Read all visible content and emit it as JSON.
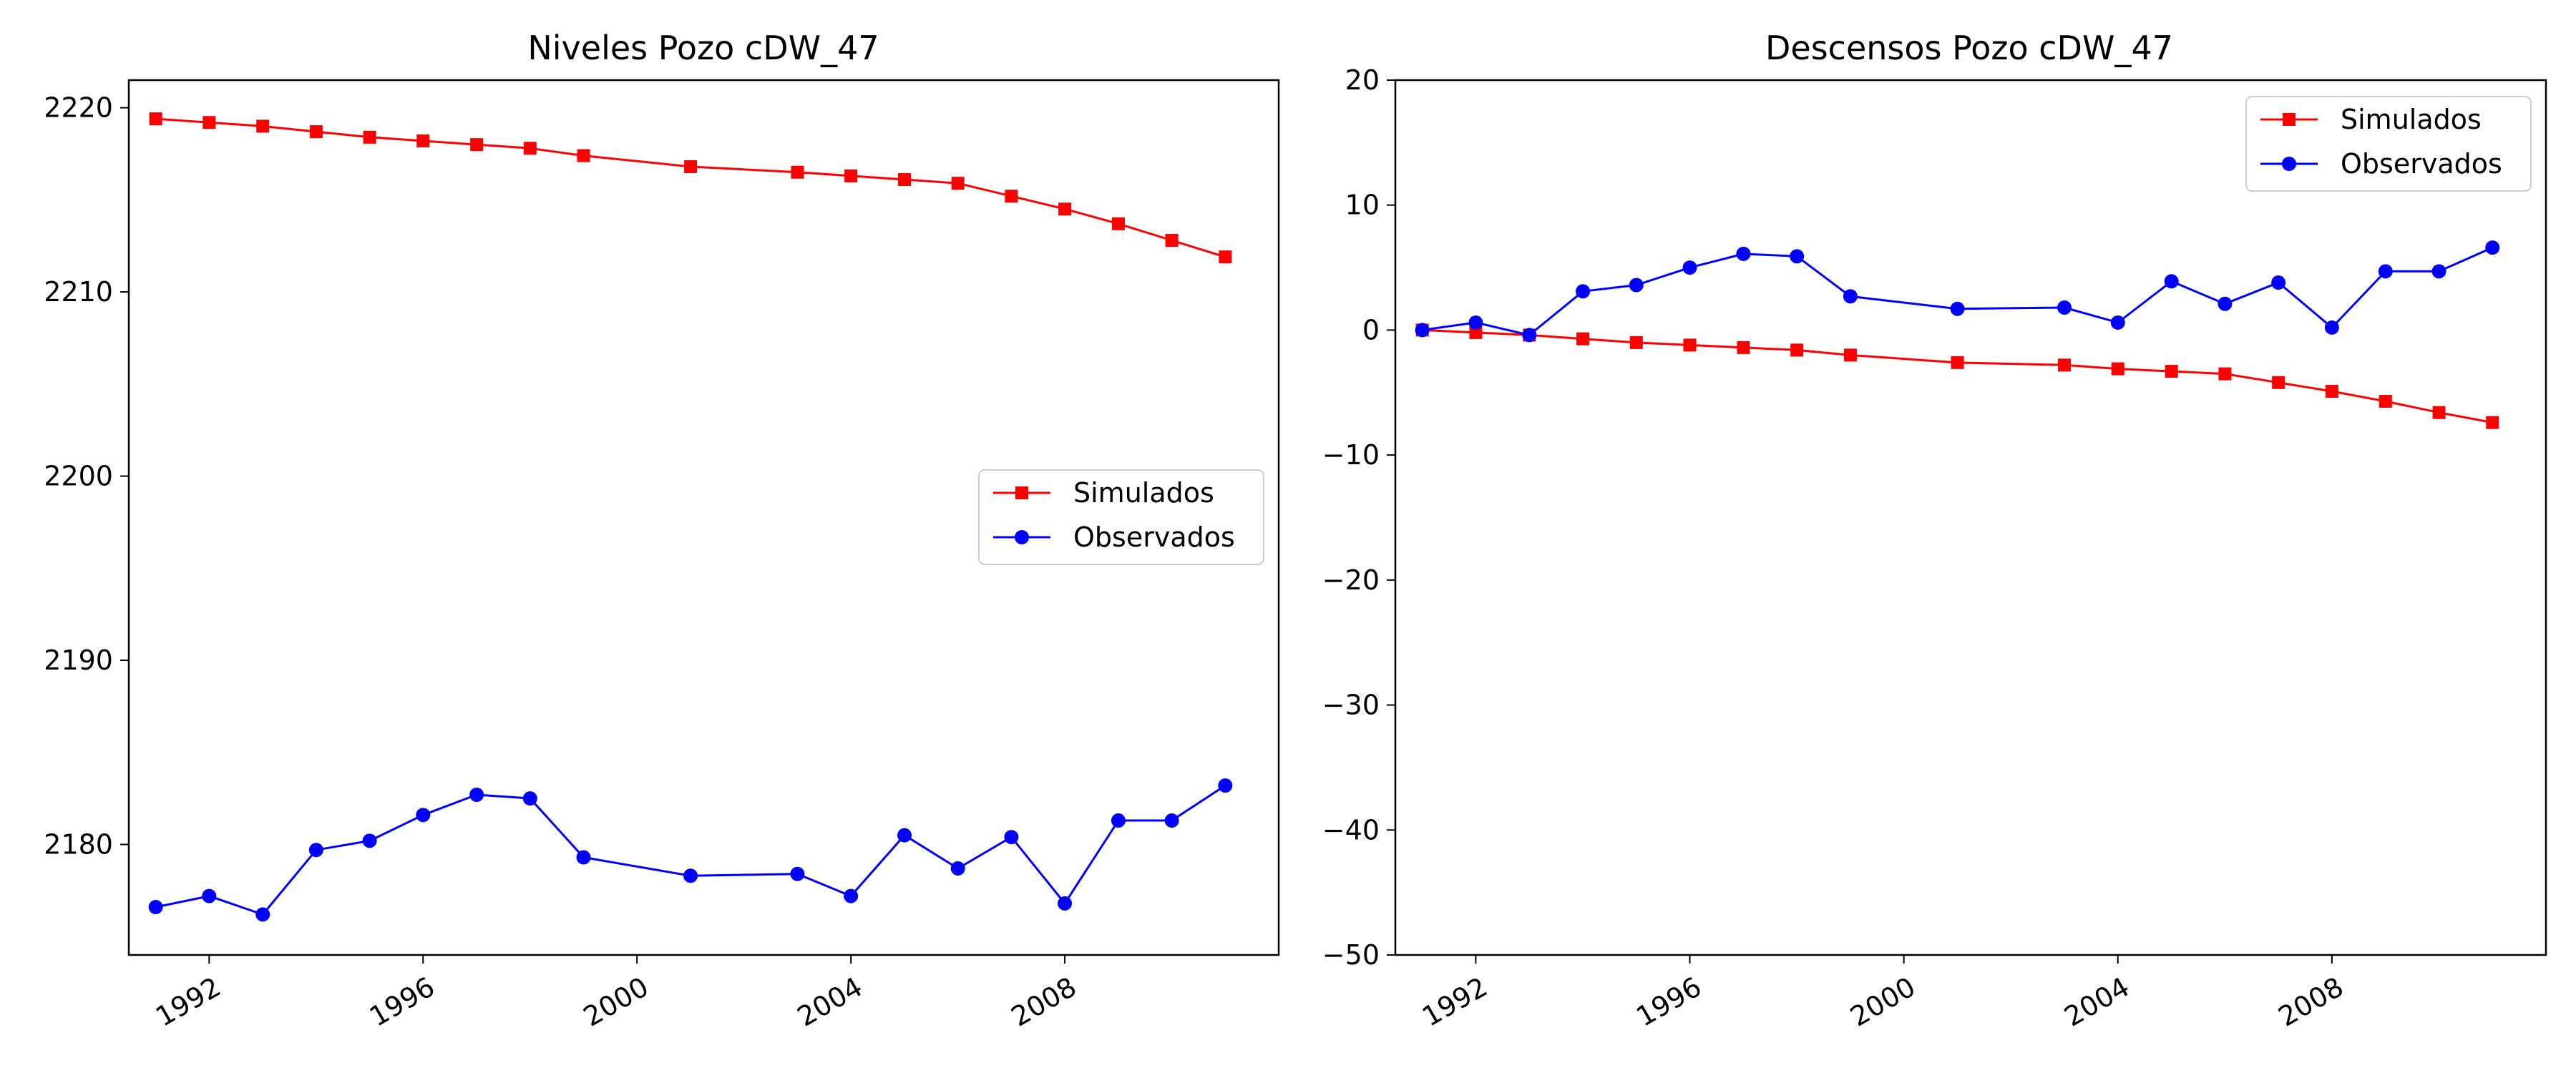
{
  "chart_data": [
    {
      "type": "line",
      "title": "Niveles Pozo cDW_47",
      "xlabel": "",
      "ylabel": "",
      "x_ticks": [
        "1992",
        "1996",
        "2000",
        "2004",
        "2008"
      ],
      "y_ticks": [
        "2180",
        "2190",
        "2200",
        "2210",
        "2220"
      ],
      "xlim": [
        "1990-07-01",
        "2012-01-01"
      ],
      "ylim": [
        2174,
        2221.5
      ],
      "grid": false,
      "legend": "center-right",
      "series": [
        {
          "name": "Simulados",
          "color": "#ff0000",
          "marker": "square",
          "x": [
            "1991-01-01",
            "1992-01-01",
            "1993-01-01",
            "1994-01-01",
            "1995-01-01",
            "1996-01-01",
            "1997-01-01",
            "1998-01-01",
            "1999-01-01",
            "2001-01-01",
            "2003-01-01",
            "2004-01-01",
            "2005-01-01",
            "2006-01-01",
            "2007-01-01",
            "2008-01-01",
            "2009-01-01",
            "2010-01-01",
            "2011-01-01"
          ],
          "y": [
            2219.4,
            2219.2,
            2219.0,
            2218.7,
            2218.4,
            2218.2,
            2218.0,
            2217.8,
            2217.4,
            2216.8,
            2216.5,
            2216.3,
            2216.1,
            2215.9,
            2215.2,
            2214.5,
            2213.7,
            2212.8,
            2211.9
          ]
        },
        {
          "name": "Observados",
          "color": "#0000ff",
          "marker": "circle",
          "x": [
            "1991-01-01",
            "1992-01-01",
            "1993-01-01",
            "1994-01-01",
            "1995-01-01",
            "1996-01-01",
            "1997-01-01",
            "1998-01-01",
            "1999-01-01",
            "2001-01-01",
            "2003-01-01",
            "2004-01-01",
            "2005-01-01",
            "2006-01-01",
            "2007-01-01",
            "2008-01-01",
            "2009-01-01",
            "2010-01-01",
            "2011-01-01"
          ],
          "y": [
            2176.6,
            2177.2,
            2176.2,
            2179.7,
            2180.2,
            2181.6,
            2182.7,
            2182.5,
            2179.3,
            2178.3,
            2178.4,
            2177.2,
            2180.5,
            2178.7,
            2180.4,
            2176.8,
            2181.3,
            2181.3,
            2183.2
          ]
        }
      ]
    },
    {
      "type": "line",
      "title": "Descensos Pozo cDW_47",
      "xlabel": "",
      "ylabel": "",
      "x_ticks": [
        "1992",
        "1996",
        "2000",
        "2004",
        "2008"
      ],
      "y_ticks": [
        "−50",
        "−40",
        "−30",
        "−20",
        "−10",
        "0",
        "10",
        "20"
      ],
      "xlim": [
        "1990-07-01",
        "2012-01-01"
      ],
      "ylim": [
        -50,
        20
      ],
      "grid": false,
      "legend": "top-right",
      "series": [
        {
          "name": "Simulados",
          "color": "#ff0000",
          "marker": "square",
          "x": [
            "1991-01-01",
            "1992-01-01",
            "1993-01-01",
            "1994-01-01",
            "1995-01-01",
            "1996-01-01",
            "1997-01-01",
            "1998-01-01",
            "1999-01-01",
            "2001-01-01",
            "2003-01-01",
            "2004-01-01",
            "2005-01-01",
            "2006-01-01",
            "2007-01-01",
            "2008-01-01",
            "2009-01-01",
            "2010-01-01",
            "2011-01-01"
          ],
          "y": [
            0.0,
            -0.2,
            -0.4,
            -0.7,
            -1.0,
            -1.2,
            -1.4,
            -1.6,
            -2.0,
            -2.6,
            -2.8,
            -3.1,
            -3.3,
            -3.5,
            -4.2,
            -4.9,
            -5.7,
            -6.6,
            -7.4
          ]
        },
        {
          "name": "Observados",
          "color": "#0000ff",
          "marker": "circle",
          "x": [
            "1991-01-01",
            "1992-01-01",
            "1993-01-01",
            "1994-01-01",
            "1995-01-01",
            "1996-01-01",
            "1997-01-01",
            "1998-01-01",
            "1999-01-01",
            "2001-01-01",
            "2003-01-01",
            "2004-01-01",
            "2005-01-01",
            "2006-01-01",
            "2007-01-01",
            "2008-01-01",
            "2009-01-01",
            "2010-01-01",
            "2011-01-01"
          ],
          "y": [
            0.0,
            0.6,
            -0.4,
            3.1,
            3.6,
            5.0,
            6.1,
            5.9,
            2.7,
            1.7,
            1.8,
            0.6,
            3.9,
            2.1,
            3.8,
            0.2,
            4.7,
            4.7,
            6.6
          ]
        }
      ]
    }
  ]
}
